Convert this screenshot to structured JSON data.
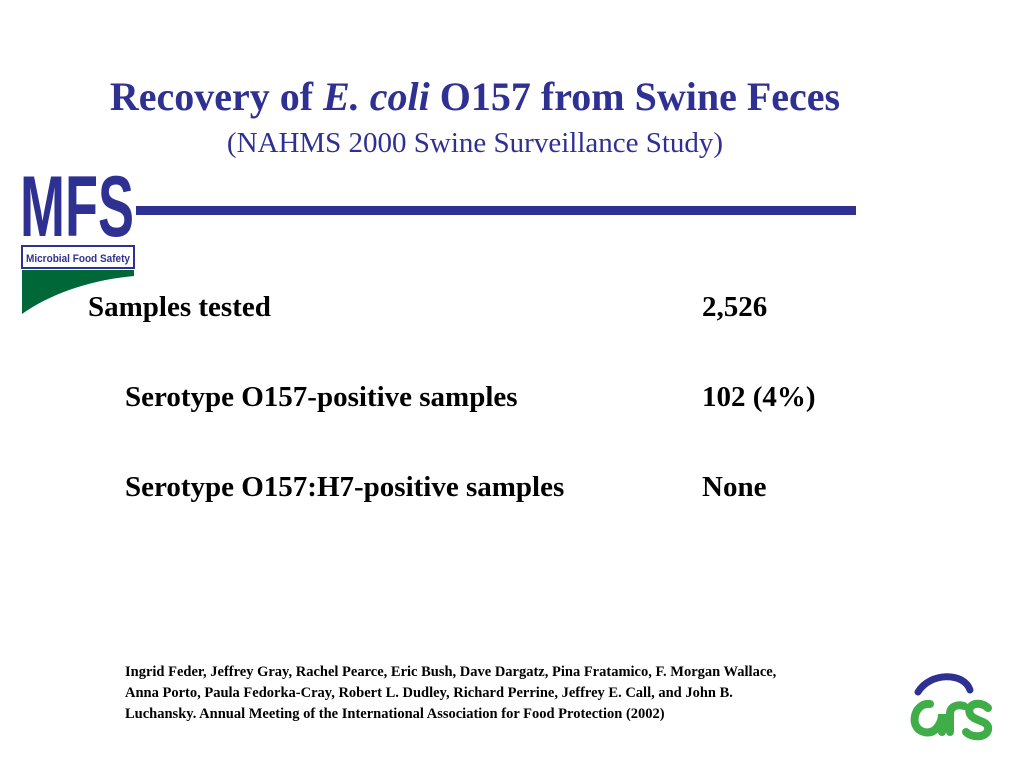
{
  "slide": {
    "title_prefix": "Recovery of ",
    "title_species": "E. coli",
    "title_suffix": " O157 from Swine Feces",
    "subtitle": "(NAHMS 2000 Swine Surveillance Study)"
  },
  "logo": {
    "letters": "MFS",
    "tagline": "Microbial Food Safety",
    "color": "#2e3192",
    "accent_color": "#006838"
  },
  "results": {
    "samples_tested": {
      "label": "Samples tested",
      "value": "2,526"
    },
    "o157_positive": {
      "label": "Serotype O157-positive samples",
      "value": "102 (4%)"
    },
    "o157h7_positive": {
      "label": "Serotype O157:H7-positive samples",
      "value": "None"
    }
  },
  "citation": {
    "line1": "Ingrid Feder, Jeffrey Gray, Rachel Pearce, Eric Bush, Dave Dargatz,  Pina Fratamico, F. Morgan Wallace,",
    "line2": "Anna Porto, Paula Fedorka-Cray, Robert L. Dudley, Richard Perrine,  Jeffrey E. Call, and John B.",
    "line3": "Luchansky. Annual Meeting of the International Association for Food Protection  (2002)"
  },
  "ars_logo": {
    "letters": "ARS",
    "color": "#3fae49",
    "accent_color": "#2e3192"
  }
}
